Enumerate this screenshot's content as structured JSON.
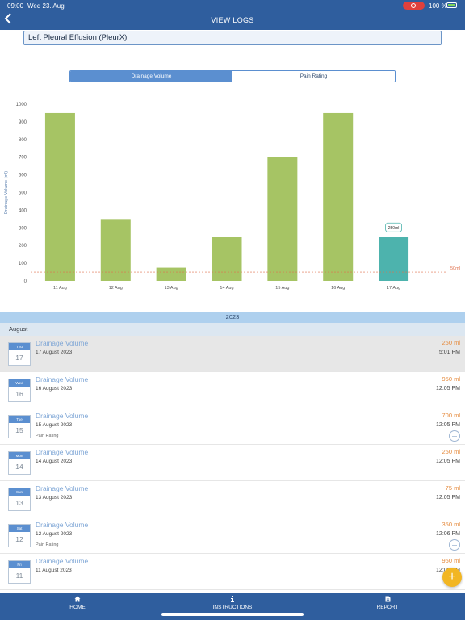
{
  "status_bar": {
    "time": "09:00",
    "date": "Wed 23. Aug",
    "battery": "100 %"
  },
  "nav": {
    "title": "VIEW LOGS",
    "back_icon": "chevron-left-icon"
  },
  "condition": {
    "selected": "Left Pleural Effusion (PleurX)"
  },
  "segments": [
    {
      "label": "Drainage Volume",
      "active": true
    },
    {
      "label": "Pain Rating",
      "active": false
    }
  ],
  "chart_data": {
    "type": "bar",
    "ylabel": "Drainage Volume (ml)",
    "ylim": [
      0,
      1000
    ],
    "yticks": [
      0,
      100,
      200,
      300,
      400,
      500,
      600,
      700,
      800,
      900,
      1000
    ],
    "categories": [
      "11 Aug",
      "12 Aug",
      "13 Aug",
      "14 Aug",
      "15 Aug",
      "16 Aug",
      "17 Aug"
    ],
    "values": [
      950,
      350,
      75,
      250,
      700,
      950,
      250
    ],
    "highlight_index": 6,
    "highlight_label": "250ml",
    "threshold": {
      "value": 50,
      "label": "50ml"
    },
    "colors": {
      "bar": "#a6c464",
      "highlight": "#4db3ad",
      "threshold": "#e0704c"
    },
    "grid": false
  },
  "year": "2023",
  "month": "August",
  "logs": [
    {
      "weekday": "Thu",
      "day": "17",
      "type": "Drainage Volume",
      "date": "17 August 2023",
      "volume": "250 ml",
      "time": "5:01 PM",
      "pain": "",
      "selected": true
    },
    {
      "weekday": "Wed",
      "day": "16",
      "type": "Drainage Volume",
      "date": "16 August 2023",
      "volume": "950 ml",
      "time": "12:05 PM",
      "pain": "",
      "selected": false
    },
    {
      "weekday": "Tue",
      "day": "15",
      "type": "Drainage Volume",
      "date": "15 August 2023",
      "volume": "700 ml",
      "time": "12:05 PM",
      "pain": "Pain Rating",
      "selected": false
    },
    {
      "weekday": "Mon",
      "day": "14",
      "type": "Drainage Volume",
      "date": "14 August 2023",
      "volume": "250 ml",
      "time": "12:05 PM",
      "pain": "",
      "selected": false
    },
    {
      "weekday": "Sun",
      "day": "13",
      "type": "Drainage Volume",
      "date": "13 August 2023",
      "volume": "75 ml",
      "time": "12:05 PM",
      "pain": "",
      "selected": false
    },
    {
      "weekday": "Sat",
      "day": "12",
      "type": "Drainage Volume",
      "date": "12 August 2023",
      "volume": "350 ml",
      "time": "12:06 PM",
      "pain": "Pain Rating",
      "selected": false
    },
    {
      "weekday": "Fri",
      "day": "11",
      "type": "Drainage Volume",
      "date": "11 August 2023",
      "volume": "950 ml",
      "time": "12:05 PM",
      "pain": "",
      "selected": false
    }
  ],
  "fab": {
    "label": "+"
  },
  "tabs": [
    {
      "label": "HOME",
      "icon": "home-icon"
    },
    {
      "label": "INSTRUCTIONS",
      "icon": "info-icon"
    },
    {
      "label": "REPORT",
      "icon": "document-icon"
    }
  ]
}
